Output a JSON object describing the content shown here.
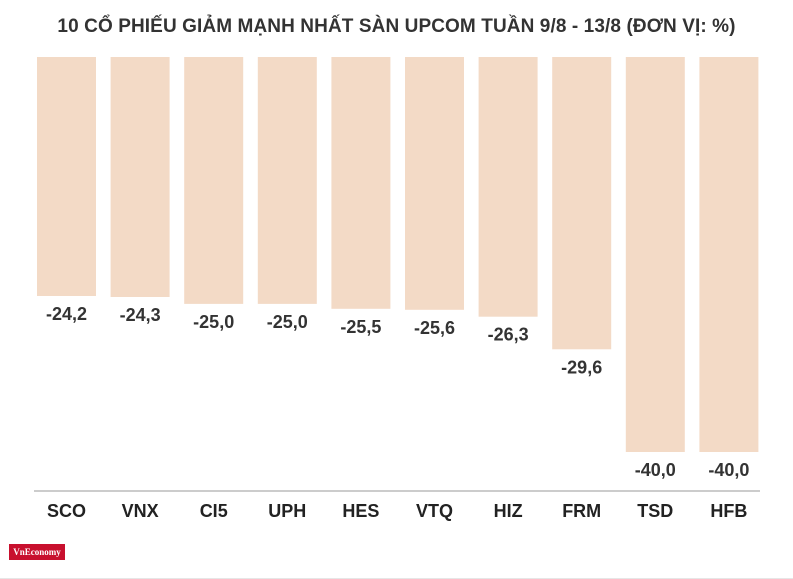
{
  "chart_data": {
    "type": "bar",
    "title": "10 CỔ PHIẾU GIẢM MẠNH NHẤT SÀN UPCOM TUẦN 9/8 - 13/8 (ĐƠN VỊ: %)",
    "categories": [
      "SCO",
      "VNX",
      "CI5",
      "UPH",
      "HES",
      "VTQ",
      "HIZ",
      "FRM",
      "TSD",
      "HFB"
    ],
    "values": [
      -24.2,
      -24.3,
      -25.0,
      -25.0,
      -25.5,
      -25.6,
      -26.3,
      -29.6,
      -40.0,
      -40.0
    ],
    "value_labels": [
      "-24,2",
      "-24,3",
      "-25,0",
      "-25,0",
      "-25,5",
      "-25,6",
      "-26,3",
      "-29,6",
      "-40,0",
      "-40,0"
    ],
    "ylim": [
      -40,
      0
    ],
    "xlabel": "",
    "ylabel": "",
    "grid": false,
    "legend": "none",
    "bar_color": "#f3dac6",
    "baseline_color": "#999999",
    "label_color": "#333333"
  },
  "source_logo": {
    "text": "VnEconomy",
    "color": "#c8102e"
  }
}
